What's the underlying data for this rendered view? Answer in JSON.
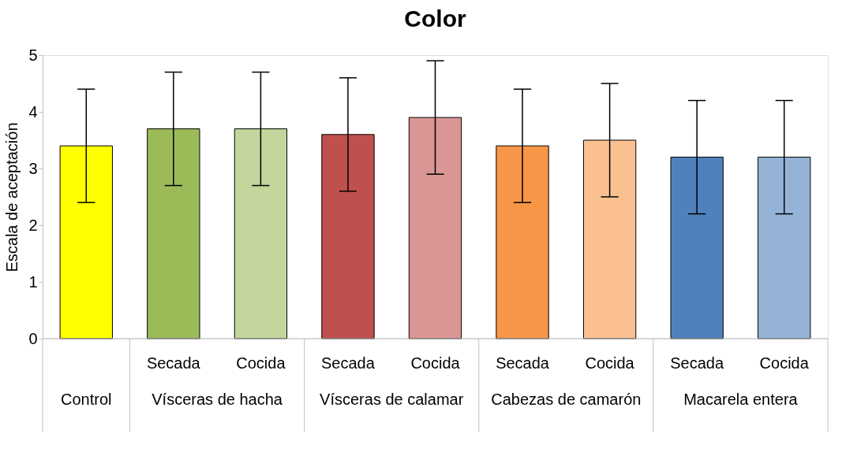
{
  "chart_data": {
    "type": "bar",
    "title": "Color",
    "ylabel": "Escala de aceptación",
    "categories": [
      null,
      "Secada",
      "Cocida",
      "Secada",
      "Cocida",
      "Secada",
      "Cocida",
      "Secada",
      "Cocida"
    ],
    "values": [
      3.4,
      3.7,
      3.7,
      3.6,
      3.9,
      3.4,
      3.5,
      3.2,
      3.2
    ],
    "errors": [
      1,
      1,
      1,
      1,
      1,
      1,
      1,
      1,
      1
    ],
    "colors": [
      "#ffff00",
      "#9bbb59",
      "#c3d69b",
      "#c0504d",
      "#d99694",
      "#f79646",
      "#fac090",
      "#4f81bd",
      "#95b3d7"
    ],
    "annotations": [
      "Control",
      "Vísceras de hacha",
      "Vísceras de calamar",
      "Cabezas de camarón",
      "Macarela entera"
    ],
    "ylim": [
      0,
      5
    ],
    "yticks": [
      0,
      1,
      2,
      3,
      4,
      5
    ],
    "grid": false
  }
}
